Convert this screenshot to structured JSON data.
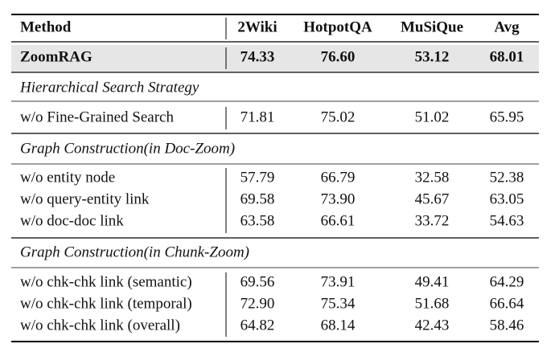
{
  "table": {
    "columns": [
      "Method",
      "2Wiki",
      "HotpotQA",
      "MuSiQue",
      "Avg"
    ],
    "main_row": [
      "ZoomRAG",
      "74.33",
      "76.60",
      "53.12",
      "68.01"
    ],
    "sections": [
      {
        "title": "Hierarchical Search Strategy",
        "rows": [
          [
            "w/o Fine-Grained Search",
            "71.81",
            "75.02",
            "51.02",
            "65.95"
          ]
        ]
      },
      {
        "title": "Graph Construction(in Doc-Zoom)",
        "rows": [
          [
            "w/o entity node",
            "57.79",
            "66.79",
            "32.58",
            "52.38"
          ],
          [
            "w/o query-entity link",
            "69.58",
            "73.90",
            "45.67",
            "63.05"
          ],
          [
            "w/o doc-doc link",
            "63.58",
            "66.61",
            "33.72",
            "54.63"
          ]
        ]
      },
      {
        "title": "Graph Construction(in Chunk-Zoom)",
        "rows": [
          [
            "w/o chk-chk link (semantic)",
            "69.56",
            "73.91",
            "49.41",
            "64.29"
          ],
          [
            "w/o chk-chk link (temporal)",
            "72.90",
            "75.34",
            "51.68",
            "66.64"
          ],
          [
            "w/o chk-chk link (overall)",
            "64.82",
            "68.14",
            "42.43",
            "58.46"
          ]
        ]
      }
    ]
  }
}
